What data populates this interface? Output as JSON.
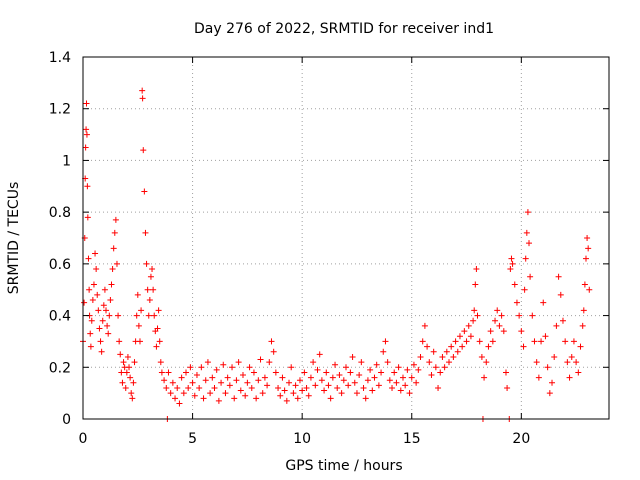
{
  "chart_data": {
    "type": "scatter",
    "title": "Day 276 of 2022, SRMTID for receiver ind1",
    "xlabel": "GPS time / hours",
    "ylabel": "SRMTID / TECUs",
    "xlim": [
      0,
      24
    ],
    "ylim": [
      0,
      1.4
    ],
    "xticks": [
      0,
      5,
      10,
      15,
      20
    ],
    "xtick_labels": [
      "0",
      "5",
      "10",
      "15",
      "20"
    ],
    "yticks": [
      0,
      0.2,
      0.4,
      0.6,
      0.8,
      1,
      1.2,
      1.4
    ],
    "ytick_labels": [
      "0",
      "0.2",
      "0.4",
      "0.6",
      "0.8",
      "1",
      "1.2",
      "1.4"
    ],
    "grid": true,
    "marker": "+",
    "series": [
      {
        "name": "ind1",
        "color": "#ff0000",
        "points": [
          [
            0.0,
            0.3
          ],
          [
            0.05,
            0.45
          ],
          [
            0.08,
            0.7
          ],
          [
            0.1,
            0.93
          ],
          [
            0.12,
            1.05
          ],
          [
            0.14,
            1.12
          ],
          [
            0.16,
            1.22
          ],
          [
            0.18,
            1.1
          ],
          [
            0.2,
            0.9
          ],
          [
            0.22,
            0.78
          ],
          [
            0.25,
            0.62
          ],
          [
            0.28,
            0.5
          ],
          [
            0.3,
            0.4
          ],
          [
            0.33,
            0.33
          ],
          [
            0.36,
            0.28
          ],
          [
            0.4,
            0.38
          ],
          [
            0.45,
            0.46
          ],
          [
            0.5,
            0.52
          ],
          [
            0.55,
            0.64
          ],
          [
            0.6,
            0.58
          ],
          [
            0.65,
            0.48
          ],
          [
            0.7,
            0.42
          ],
          [
            0.75,
            0.35
          ],
          [
            0.8,
            0.3
          ],
          [
            0.85,
            0.26
          ],
          [
            0.9,
            0.38
          ],
          [
            0.95,
            0.44
          ],
          [
            1.0,
            0.5
          ],
          [
            1.05,
            0.42
          ],
          [
            1.1,
            0.36
          ],
          [
            1.15,
            0.33
          ],
          [
            1.2,
            0.4
          ],
          [
            1.25,
            0.46
          ],
          [
            1.3,
            0.52
          ],
          [
            1.35,
            0.58
          ],
          [
            1.4,
            0.66
          ],
          [
            1.45,
            0.72
          ],
          [
            1.5,
            0.77
          ],
          [
            1.55,
            0.6
          ],
          [
            1.6,
            0.4
          ],
          [
            1.65,
            0.3
          ],
          [
            1.7,
            0.25
          ],
          [
            1.75,
            0.18
          ],
          [
            1.8,
            0.14
          ],
          [
            1.85,
            0.22
          ],
          [
            1.9,
            0.2
          ],
          [
            1.95,
            0.12
          ],
          [
            2.0,
            0.18
          ],
          [
            2.05,
            0.24
          ],
          [
            2.1,
            0.2
          ],
          [
            2.15,
            0.16
          ],
          [
            2.2,
            0.1
          ],
          [
            2.25,
            0.08
          ],
          [
            2.3,
            0.14
          ],
          [
            2.35,
            0.22
          ],
          [
            2.4,
            0.3
          ],
          [
            2.45,
            0.4
          ],
          [
            2.5,
            0.48
          ],
          [
            2.55,
            0.36
          ],
          [
            2.6,
            0.3
          ],
          [
            2.65,
            0.42
          ],
          [
            2.7,
            1.27
          ],
          [
            2.72,
            1.24
          ],
          [
            2.75,
            1.04
          ],
          [
            2.8,
            0.88
          ],
          [
            2.85,
            0.72
          ],
          [
            2.9,
            0.6
          ],
          [
            2.95,
            0.5
          ],
          [
            3.0,
            0.4
          ],
          [
            3.05,
            0.46
          ],
          [
            3.1,
            0.55
          ],
          [
            3.15,
            0.58
          ],
          [
            3.2,
            0.5
          ],
          [
            3.25,
            0.4
          ],
          [
            3.3,
            0.34
          ],
          [
            3.35,
            0.28
          ],
          [
            3.4,
            0.35
          ],
          [
            3.45,
            0.42
          ],
          [
            3.5,
            0.3
          ],
          [
            3.55,
            0.22
          ],
          [
            3.6,
            0.18
          ],
          [
            3.7,
            0.15
          ],
          [
            3.8,
            0.12
          ],
          [
            3.85,
            0.0
          ],
          [
            3.9,
            0.18
          ],
          [
            4.0,
            0.1
          ],
          [
            4.1,
            0.14
          ],
          [
            4.2,
            0.08
          ],
          [
            4.3,
            0.12
          ],
          [
            4.4,
            0.06
          ],
          [
            4.5,
            0.16
          ],
          [
            4.6,
            0.1
          ],
          [
            4.7,
            0.18
          ],
          [
            4.8,
            0.12
          ],
          [
            4.9,
            0.2
          ],
          [
            5.0,
            0.14
          ],
          [
            5.1,
            0.09
          ],
          [
            5.2,
            0.17
          ],
          [
            5.3,
            0.12
          ],
          [
            5.4,
            0.2
          ],
          [
            5.5,
            0.08
          ],
          [
            5.6,
            0.15
          ],
          [
            5.7,
            0.22
          ],
          [
            5.8,
            0.1
          ],
          [
            5.9,
            0.16
          ],
          [
            6.0,
            0.12
          ],
          [
            6.1,
            0.19
          ],
          [
            6.2,
            0.07
          ],
          [
            6.3,
            0.14
          ],
          [
            6.4,
            0.21
          ],
          [
            6.5,
            0.1
          ],
          [
            6.6,
            0.16
          ],
          [
            6.7,
            0.13
          ],
          [
            6.8,
            0.2
          ],
          [
            6.9,
            0.08
          ],
          [
            7.0,
            0.15
          ],
          [
            7.1,
            0.22
          ],
          [
            7.2,
            0.11
          ],
          [
            7.3,
            0.17
          ],
          [
            7.4,
            0.09
          ],
          [
            7.5,
            0.14
          ],
          [
            7.6,
            0.2
          ],
          [
            7.7,
            0.12
          ],
          [
            7.8,
            0.18
          ],
          [
            7.9,
            0.08
          ],
          [
            8.0,
            0.15
          ],
          [
            8.1,
            0.23
          ],
          [
            8.2,
            0.1
          ],
          [
            8.3,
            0.16
          ],
          [
            8.4,
            0.13
          ],
          [
            8.5,
            0.22
          ],
          [
            8.6,
            0.3
          ],
          [
            8.7,
            0.26
          ],
          [
            8.8,
            0.18
          ],
          [
            8.9,
            0.12
          ],
          [
            9.0,
            0.09
          ],
          [
            9.1,
            0.16
          ],
          [
            9.2,
            0.11
          ],
          [
            9.3,
            0.07
          ],
          [
            9.4,
            0.14
          ],
          [
            9.5,
            0.2
          ],
          [
            9.6,
            0.1
          ],
          [
            9.7,
            0.13
          ],
          [
            9.8,
            0.08
          ],
          [
            9.9,
            0.15
          ],
          [
            10.0,
            0.11
          ],
          [
            10.1,
            0.18
          ],
          [
            10.2,
            0.12
          ],
          [
            10.3,
            0.09
          ],
          [
            10.4,
            0.16
          ],
          [
            10.5,
            0.22
          ],
          [
            10.6,
            0.13
          ],
          [
            10.7,
            0.19
          ],
          [
            10.8,
            0.25
          ],
          [
            10.9,
            0.15
          ],
          [
            11.0,
            0.11
          ],
          [
            11.1,
            0.18
          ],
          [
            11.2,
            0.13
          ],
          [
            11.3,
            0.08
          ],
          [
            11.4,
            0.16
          ],
          [
            11.5,
            0.21
          ],
          [
            11.6,
            0.12
          ],
          [
            11.7,
            0.17
          ],
          [
            11.8,
            0.1
          ],
          [
            11.9,
            0.15
          ],
          [
            12.0,
            0.2
          ],
          [
            12.1,
            0.13
          ],
          [
            12.2,
            0.18
          ],
          [
            12.3,
            0.24
          ],
          [
            12.4,
            0.14
          ],
          [
            12.5,
            0.1
          ],
          [
            12.6,
            0.17
          ],
          [
            12.7,
            0.22
          ],
          [
            12.8,
            0.12
          ],
          [
            12.9,
            0.08
          ],
          [
            13.0,
            0.15
          ],
          [
            13.1,
            0.19
          ],
          [
            13.2,
            0.11
          ],
          [
            13.3,
            0.16
          ],
          [
            13.4,
            0.21
          ],
          [
            13.5,
            0.13
          ],
          [
            13.6,
            0.18
          ],
          [
            13.7,
            0.26
          ],
          [
            13.8,
            0.3
          ],
          [
            13.9,
            0.22
          ],
          [
            14.0,
            0.15
          ],
          [
            14.1,
            0.12
          ],
          [
            14.2,
            0.18
          ],
          [
            14.3,
            0.14
          ],
          [
            14.4,
            0.2
          ],
          [
            14.5,
            0.11
          ],
          [
            14.6,
            0.16
          ],
          [
            14.7,
            0.13
          ],
          [
            14.8,
            0.19
          ],
          [
            14.9,
            0.1
          ],
          [
            15.0,
            0.16
          ],
          [
            15.1,
            0.21
          ],
          [
            15.2,
            0.14
          ],
          [
            15.3,
            0.19
          ],
          [
            15.4,
            0.24
          ],
          [
            15.5,
            0.3
          ],
          [
            15.6,
            0.36
          ],
          [
            15.7,
            0.28
          ],
          [
            15.8,
            0.22
          ],
          [
            15.9,
            0.17
          ],
          [
            16.0,
            0.26
          ],
          [
            16.1,
            0.2
          ],
          [
            16.2,
            0.12
          ],
          [
            16.3,
            0.18
          ],
          [
            16.4,
            0.24
          ],
          [
            16.5,
            0.2
          ],
          [
            16.6,
            0.26
          ],
          [
            16.7,
            0.22
          ],
          [
            16.8,
            0.28
          ],
          [
            16.9,
            0.24
          ],
          [
            17.0,
            0.3
          ],
          [
            17.1,
            0.26
          ],
          [
            17.2,
            0.32
          ],
          [
            17.3,
            0.28
          ],
          [
            17.4,
            0.34
          ],
          [
            17.5,
            0.3
          ],
          [
            17.6,
            0.36
          ],
          [
            17.7,
            0.32
          ],
          [
            17.8,
            0.38
          ],
          [
            17.85,
            0.42
          ],
          [
            17.9,
            0.52
          ],
          [
            17.95,
            0.58
          ],
          [
            18.0,
            0.4
          ],
          [
            18.1,
            0.3
          ],
          [
            18.2,
            0.24
          ],
          [
            18.25,
            0.0
          ],
          [
            18.3,
            0.16
          ],
          [
            18.4,
            0.22
          ],
          [
            18.5,
            0.28
          ],
          [
            18.6,
            0.34
          ],
          [
            18.7,
            0.3
          ],
          [
            18.8,
            0.38
          ],
          [
            18.9,
            0.42
          ],
          [
            19.0,
            0.36
          ],
          [
            19.1,
            0.4
          ],
          [
            19.2,
            0.34
          ],
          [
            19.3,
            0.18
          ],
          [
            19.35,
            0.12
          ],
          [
            19.45,
            0.0
          ],
          [
            19.5,
            0.58
          ],
          [
            19.55,
            0.62
          ],
          [
            19.6,
            0.6
          ],
          [
            19.7,
            0.52
          ],
          [
            19.8,
            0.45
          ],
          [
            19.9,
            0.4
          ],
          [
            20.0,
            0.34
          ],
          [
            20.1,
            0.28
          ],
          [
            20.15,
            0.5
          ],
          [
            20.2,
            0.62
          ],
          [
            20.25,
            0.72
          ],
          [
            20.3,
            0.8
          ],
          [
            20.35,
            0.68
          ],
          [
            20.4,
            0.55
          ],
          [
            20.5,
            0.4
          ],
          [
            20.6,
            0.3
          ],
          [
            20.7,
            0.22
          ],
          [
            20.8,
            0.16
          ],
          [
            20.9,
            0.3
          ],
          [
            21.0,
            0.45
          ],
          [
            21.1,
            0.32
          ],
          [
            21.2,
            0.2
          ],
          [
            21.3,
            0.1
          ],
          [
            21.4,
            0.14
          ],
          [
            21.5,
            0.24
          ],
          [
            21.6,
            0.36
          ],
          [
            21.7,
            0.55
          ],
          [
            21.8,
            0.48
          ],
          [
            21.9,
            0.38
          ],
          [
            22.0,
            0.3
          ],
          [
            22.1,
            0.22
          ],
          [
            22.2,
            0.16
          ],
          [
            22.3,
            0.24
          ],
          [
            22.4,
            0.3
          ],
          [
            22.5,
            0.22
          ],
          [
            22.6,
            0.18
          ],
          [
            22.7,
            0.28
          ],
          [
            22.8,
            0.36
          ],
          [
            22.85,
            0.42
          ],
          [
            22.9,
            0.52
          ],
          [
            22.95,
            0.62
          ],
          [
            23.0,
            0.7
          ],
          [
            23.05,
            0.66
          ],
          [
            23.1,
            0.5
          ]
        ]
      }
    ]
  }
}
